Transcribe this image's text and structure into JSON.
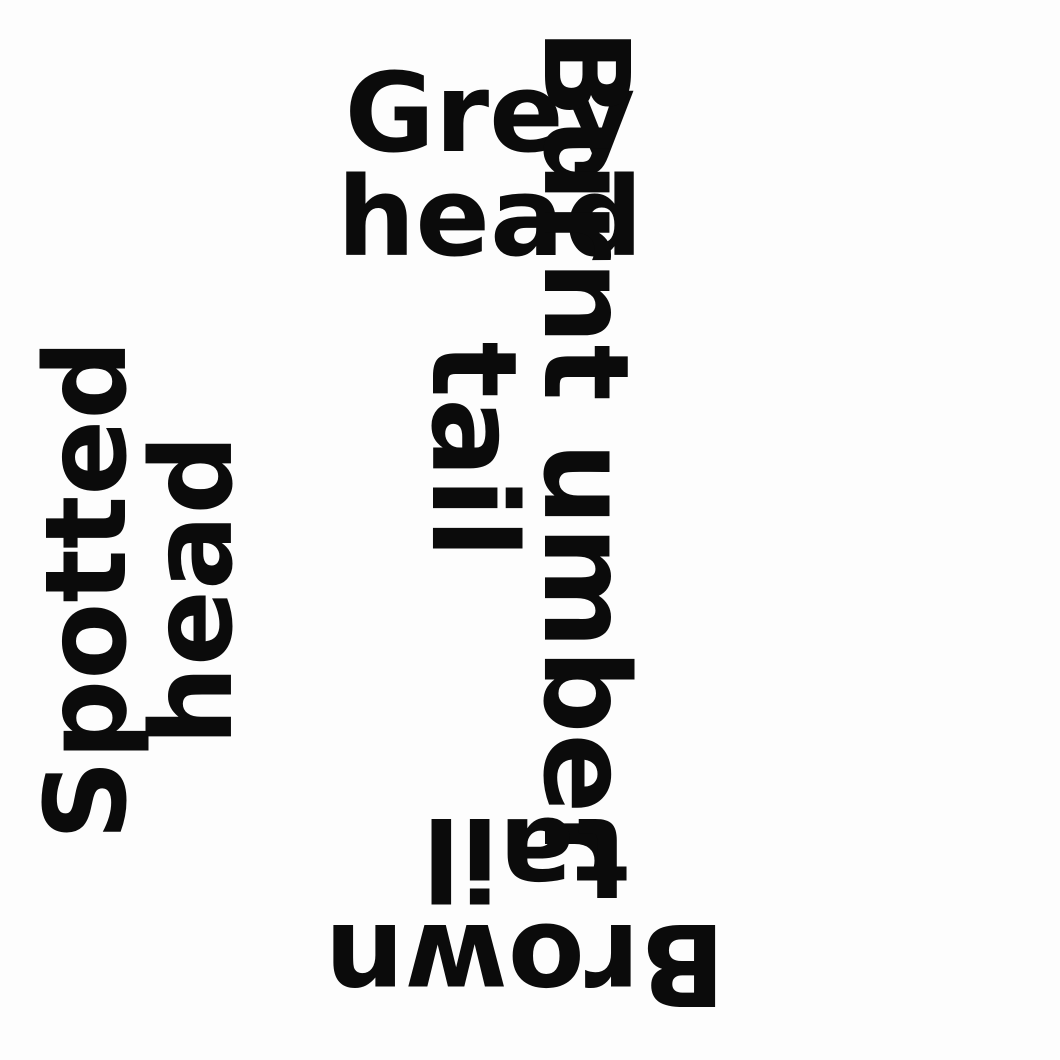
{
  "labels": {
    "top": {
      "line1": "Grey",
      "line2": "head"
    },
    "right": {
      "line1": "Burnt umber",
      "line2": "tail"
    },
    "bottom": {
      "line1": "Brown",
      "line2": "tail"
    },
    "left": {
      "line1": "Spotted",
      "line2": "head"
    }
  },
  "colors": {
    "ink": "#0b0b0b",
    "paper": "#fdfdfd"
  }
}
